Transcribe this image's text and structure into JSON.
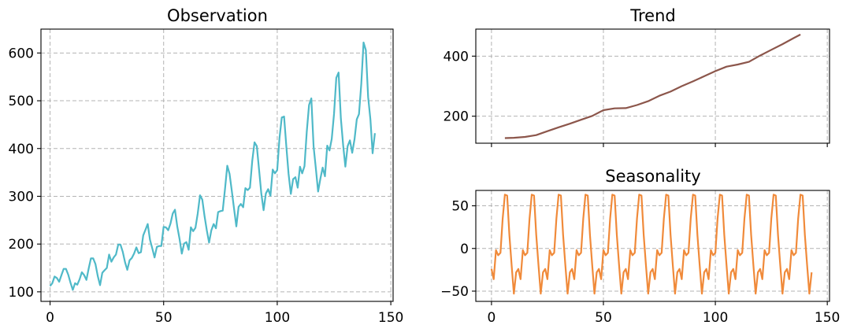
{
  "chart_data": [
    {
      "id": "obs",
      "type": "line",
      "title": "Observation",
      "color": "#4fb9c8",
      "xlim": [
        -4,
        151
      ],
      "ylim": [
        80,
        650
      ],
      "xticks": [
        0,
        50,
        100,
        150
      ],
      "yticks": [
        100,
        200,
        300,
        400,
        500,
        600
      ],
      "grid": true,
      "series": [
        {
          "values": [
            112,
            118,
            132,
            129,
            121,
            135,
            148,
            148,
            136,
            119,
            104,
            118,
            115,
            126,
            141,
            135,
            125,
            149,
            170,
            170,
            158,
            133,
            114,
            140,
            145,
            150,
            178,
            163,
            172,
            178,
            199,
            199,
            184,
            162,
            146,
            166,
            171,
            180,
            193,
            181,
            183,
            218,
            230,
            242,
            209,
            191,
            172,
            194,
            196,
            196,
            236,
            235,
            229,
            243,
            264,
            272,
            237,
            211,
            180,
            201,
            204,
            188,
            235,
            227,
            234,
            264,
            302,
            293,
            259,
            229,
            203,
            229,
            242,
            233,
            267,
            269,
            270,
            315,
            364,
            347,
            312,
            274,
            237,
            278,
            284,
            277,
            317,
            313,
            318,
            374,
            413,
            405,
            355,
            306,
            271,
            306,
            315,
            301,
            356,
            348,
            355,
            422,
            465,
            467,
            404,
            347,
            305,
            336,
            340,
            318,
            362,
            348,
            363,
            435,
            491,
            505,
            404,
            359,
            310,
            337,
            360,
            342,
            406,
            396,
            420,
            472,
            548,
            559,
            463,
            407,
            362,
            405,
            417,
            391,
            419,
            461,
            472,
            535,
            622,
            606,
            508,
            461,
            390,
            432
          ]
        }
      ]
    },
    {
      "id": "trend",
      "type": "line",
      "title": "Trend",
      "color": "#8c564b",
      "xlim": [
        -7,
        151
      ],
      "ylim": [
        110,
        490
      ],
      "xticks": [
        0,
        50,
        100,
        150
      ],
      "yticks": [
        200,
        400
      ],
      "grid": true,
      "series": [
        {
          "x": [
            6,
            10,
            15,
            20,
            25,
            30,
            35,
            40,
            45,
            50,
            55,
            60,
            65,
            70,
            75,
            80,
            85,
            90,
            95,
            100,
            105,
            110,
            115,
            120,
            125,
            130,
            135,
            138
          ],
          "values": [
            127,
            128,
            131,
            137,
            150,
            163,
            175,
            188,
            201,
            220,
            226,
            227,
            237,
            250,
            268,
            282,
            300,
            316,
            333,
            350,
            365,
            372,
            381,
            402,
            421,
            440,
            460,
            472
          ]
        }
      ]
    },
    {
      "id": "seasonality",
      "type": "line",
      "title": "Seasonality",
      "color": "#f08a3a",
      "xlim": [
        -7,
        151
      ],
      "ylim": [
        -62,
        68
      ],
      "xticks": [
        0,
        50,
        100,
        150
      ],
      "yticks": [
        -50,
        0,
        50
      ],
      "grid": true,
      "series": [
        {
          "period_values": [
            -24,
            -36,
            -2,
            -8,
            -5,
            35,
            63,
            62,
            16,
            -20,
            -53,
            -28
          ],
          "n": 144
        }
      ]
    }
  ]
}
